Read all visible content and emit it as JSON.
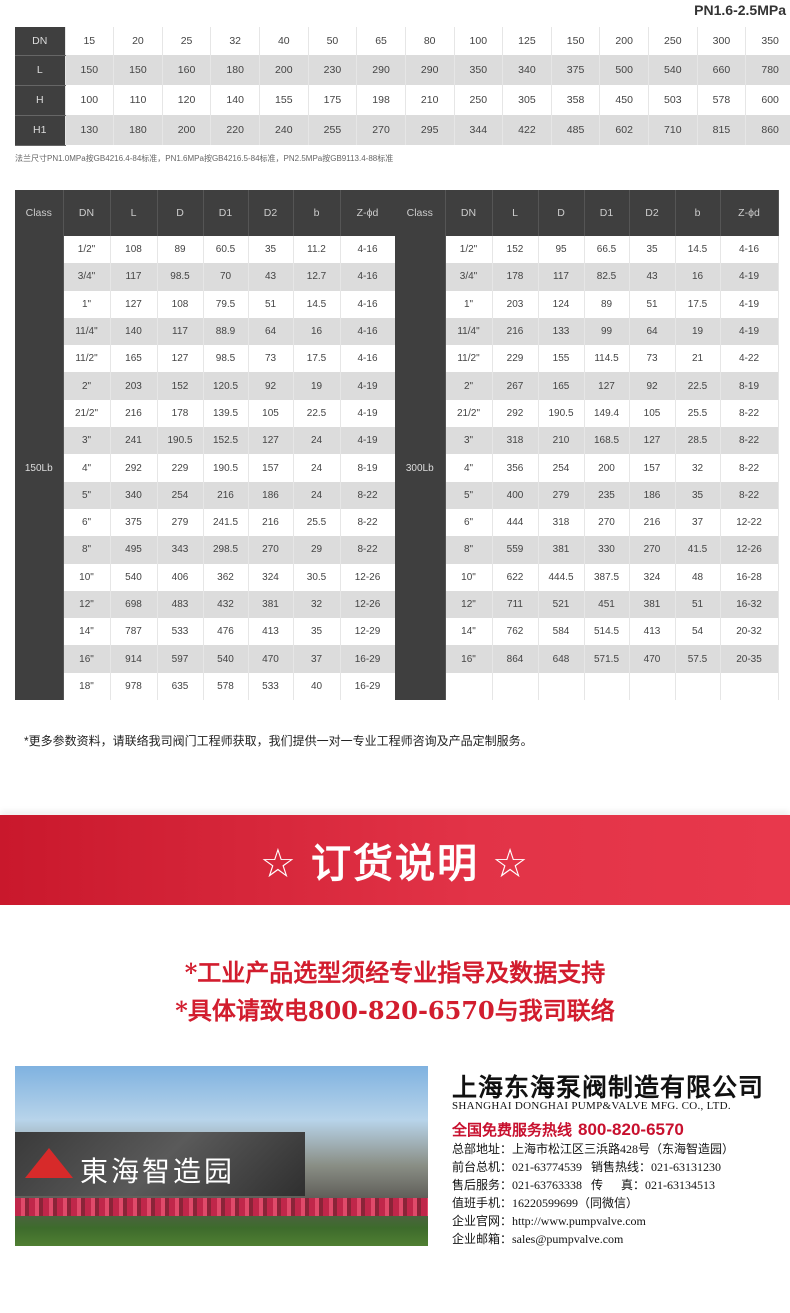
{
  "pressure_label": "PN1.6-2.5MPa",
  "table1": {
    "rows": [
      {
        "label": "DN",
        "values": [
          "15",
          "20",
          "25",
          "32",
          "40",
          "50",
          "65",
          "80",
          "100",
          "125",
          "150",
          "200",
          "250",
          "300",
          "350"
        ]
      },
      {
        "label": "L",
        "values": [
          "150",
          "150",
          "160",
          "180",
          "200",
          "230",
          "290",
          "290",
          "350",
          "340",
          "375",
          "500",
          "540",
          "660",
          "780"
        ]
      },
      {
        "label": "H",
        "values": [
          "100",
          "110",
          "120",
          "140",
          "155",
          "175",
          "198",
          "210",
          "250",
          "305",
          "358",
          "450",
          "503",
          "578",
          "600"
        ]
      },
      {
        "label": "H1",
        "values": [
          "130",
          "180",
          "200",
          "220",
          "240",
          "255",
          "270",
          "295",
          "344",
          "422",
          "485",
          "602",
          "710",
          "815",
          "860"
        ]
      }
    ],
    "note": "法兰尺寸PN1.0MPa按GB4216.4-84标准，PN1.6MPa按GB4216.5-84标准，PN2.5MPa按GB9113.4-88标准"
  },
  "table2": {
    "headers": [
      "Class",
      "DN",
      "L",
      "D",
      "D1",
      "D2",
      "b",
      "Z-ϕd"
    ],
    "left": {
      "class": "150Lb",
      "rows": [
        [
          "1/2\"",
          "108",
          "89",
          "60.5",
          "35",
          "11.2",
          "4-16"
        ],
        [
          "3/4\"",
          "117",
          "98.5",
          "70",
          "43",
          "12.7",
          "4-16"
        ],
        [
          "1\"",
          "127",
          "108",
          "79.5",
          "51",
          "14.5",
          "4-16"
        ],
        [
          "11/4\"",
          "140",
          "117",
          "88.9",
          "64",
          "16",
          "4-16"
        ],
        [
          "11/2\"",
          "165",
          "127",
          "98.5",
          "73",
          "17.5",
          "4-16"
        ],
        [
          "2\"",
          "203",
          "152",
          "120.5",
          "92",
          "19",
          "4-19"
        ],
        [
          "21/2\"",
          "216",
          "178",
          "139.5",
          "105",
          "22.5",
          "4-19"
        ],
        [
          "3\"",
          "241",
          "190.5",
          "152.5",
          "127",
          "24",
          "4-19"
        ],
        [
          "4\"",
          "292",
          "229",
          "190.5",
          "157",
          "24",
          "8-19"
        ],
        [
          "5\"",
          "340",
          "254",
          "216",
          "186",
          "24",
          "8-22"
        ],
        [
          "6\"",
          "375",
          "279",
          "241.5",
          "216",
          "25.5",
          "8-22"
        ],
        [
          "8\"",
          "495",
          "343",
          "298.5",
          "270",
          "29",
          "8-22"
        ],
        [
          "10\"",
          "540",
          "406",
          "362",
          "324",
          "30.5",
          "12-26"
        ],
        [
          "12\"",
          "698",
          "483",
          "432",
          "381",
          "32",
          "12-26"
        ],
        [
          "14\"",
          "787",
          "533",
          "476",
          "413",
          "35",
          "12-29"
        ],
        [
          "16\"",
          "914",
          "597",
          "540",
          "470",
          "37",
          "16-29"
        ],
        [
          "18\"",
          "978",
          "635",
          "578",
          "533",
          "40",
          "16-29"
        ]
      ]
    },
    "right": {
      "class": "300Lb",
      "rows": [
        [
          "1/2\"",
          "152",
          "95",
          "66.5",
          "35",
          "14.5",
          "4-16"
        ],
        [
          "3/4\"",
          "178",
          "117",
          "82.5",
          "43",
          "16",
          "4-19"
        ],
        [
          "1\"",
          "203",
          "124",
          "89",
          "51",
          "17.5",
          "4-19"
        ],
        [
          "11/4\"",
          "216",
          "133",
          "99",
          "64",
          "19",
          "4-19"
        ],
        [
          "11/2\"",
          "229",
          "155",
          "114.5",
          "73",
          "21",
          "4-22"
        ],
        [
          "2\"",
          "267",
          "165",
          "127",
          "92",
          "22.5",
          "8-19"
        ],
        [
          "21/2\"",
          "292",
          "190.5",
          "149.4",
          "105",
          "25.5",
          "8-22"
        ],
        [
          "3\"",
          "318",
          "210",
          "168.5",
          "127",
          "28.5",
          "8-22"
        ],
        [
          "4\"",
          "356",
          "254",
          "200",
          "157",
          "32",
          "8-22"
        ],
        [
          "5\"",
          "400",
          "279",
          "235",
          "186",
          "35",
          "8-22"
        ],
        [
          "6\"",
          "444",
          "318",
          "270",
          "216",
          "37",
          "12-22"
        ],
        [
          "8\"",
          "559",
          "381",
          "330",
          "270",
          "41.5",
          "12-26"
        ],
        [
          "10\"",
          "622",
          "444.5",
          "387.5",
          "324",
          "48",
          "16-28"
        ],
        [
          "12\"",
          "711",
          "521",
          "451",
          "381",
          "51",
          "16-32"
        ],
        [
          "14\"",
          "762",
          "584",
          "514.5",
          "413",
          "54",
          "20-32"
        ],
        [
          "16\"",
          "864",
          "648",
          "571.5",
          "470",
          "57.5",
          "20-35"
        ],
        [
          "",
          "",
          "",
          "",
          "",
          "",
          ""
        ]
      ]
    }
  },
  "footnote": "*更多参数资料，请联络我司阀门工程师获取，我们提供一对一专业工程师咨询及产品定制服务。",
  "banner": {
    "title": "☆ 订货说明 ☆",
    "color": "#d8263a"
  },
  "order_lines": [
    "*工业产品选型须经专业指导及数据支持",
    "*具体请致电800-820-6570与我司联络"
  ],
  "company": {
    "photo_sign": "東海智造园",
    "name_cn": "上海东海泵阀制造有限公司",
    "name_en": "SHANGHAI DONGHAI PUMP&VALVE MFG. CO., LTD.",
    "hotline_label": "全国免费服务热线",
    "hotline": "800-820-6570",
    "info": [
      "总部地址：上海市松江区三浜路428号（东海智造园）",
      "前台总机：021-63774539   销售热线：021-63131230",
      "售后服务：021-63763338   传      真：021-63134513",
      "值班手机：16220599699（同微信）",
      "企业官网：http://www.pumpvalve.com",
      "企业邮箱：sales@pumpvalve.com"
    ]
  }
}
